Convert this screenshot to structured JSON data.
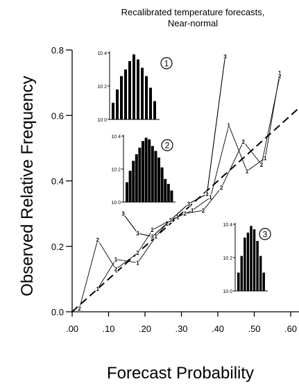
{
  "chart_data": {
    "type": "line",
    "title_lines": [
      "Recalibrated temperature forecasts,",
      "Near-normal"
    ],
    "xlabel": "Forecast Probability",
    "ylabel": "Observed Relative Frequency",
    "xlim": [
      0,
      0.65
    ],
    "ylim": [
      0,
      0.8
    ],
    "x_ticks": [
      0.0,
      0.1,
      0.2,
      0.3,
      0.4,
      0.5,
      0.6
    ],
    "x_tick_labels": [
      ".00",
      ".10",
      ".20",
      ".30",
      ".40",
      ".50",
      ".60"
    ],
    "y_ticks": [
      0,
      0.2,
      0.4,
      0.6,
      0.8
    ],
    "y_tick_labels": [
      "0.0",
      "0.2",
      "0.4",
      "0.6",
      "0.8"
    ],
    "grid": false,
    "legend": "none",
    "reference_line": {
      "style": "dashed",
      "points": [
        [
          0,
          0
        ],
        [
          0.65,
          0.65
        ]
      ]
    },
    "series": [
      {
        "name": "1",
        "points": [
          [
            0.07,
            0.07
          ],
          [
            0.12,
            0.16
          ],
          [
            0.18,
            0.15
          ],
          [
            0.23,
            0.23
          ],
          [
            0.26,
            0.27
          ],
          [
            0.29,
            0.29
          ],
          [
            0.33,
            0.31
          ],
          [
            0.38,
            0.35
          ],
          [
            0.43,
            0.57
          ],
          [
            0.48,
            0.43
          ],
          [
            0.53,
            0.47
          ],
          [
            0.57,
            0.73
          ]
        ]
      },
      {
        "name": "2",
        "points": [
          [
            0.02,
            0.01
          ],
          [
            0.07,
            0.22
          ],
          [
            0.12,
            0.13
          ],
          [
            0.18,
            0.18
          ],
          [
            0.22,
            0.25
          ],
          [
            0.27,
            0.28
          ],
          [
            0.31,
            0.3
          ],
          [
            0.36,
            0.31
          ],
          [
            0.41,
            0.38
          ],
          [
            0.47,
            0.52
          ],
          [
            0.52,
            0.45
          ],
          [
            0.57,
            0.72
          ]
        ]
      },
      {
        "name": "3",
        "points": [
          [
            0.14,
            0.3
          ],
          [
            0.18,
            0.24
          ],
          [
            0.22,
            0.23
          ],
          [
            0.27,
            0.28
          ],
          [
            0.32,
            0.33
          ],
          [
            0.37,
            0.36
          ],
          [
            0.42,
            0.78
          ]
        ]
      }
    ],
    "insets": [
      {
        "id": "1",
        "marker": "1",
        "y_tick_labels": [
          "10 4",
          "10 2",
          "10 0"
        ],
        "bars": [
          1.0,
          1.8,
          2.6,
          3.0,
          3.5,
          3.9,
          3.6,
          3.1,
          2.6,
          1.9,
          1.1
        ]
      },
      {
        "id": "2",
        "marker": "2",
        "y_tick_labels": [
          "10 4",
          "10 2",
          "10 0"
        ],
        "bars": [
          1.2,
          1.9,
          2.5,
          2.9,
          3.3,
          3.7,
          3.9,
          3.8,
          3.4,
          3.1,
          2.7,
          2.1,
          1.4,
          1.1,
          0.7
        ]
      },
      {
        "id": "3",
        "marker": "3",
        "y_tick_labels": [
          "10 4",
          "10 2",
          "10 0"
        ],
        "bars": [
          1.1,
          2.1,
          3.2,
          3.5,
          3.9,
          3.7,
          3.0,
          2.1,
          1.1
        ]
      }
    ]
  }
}
